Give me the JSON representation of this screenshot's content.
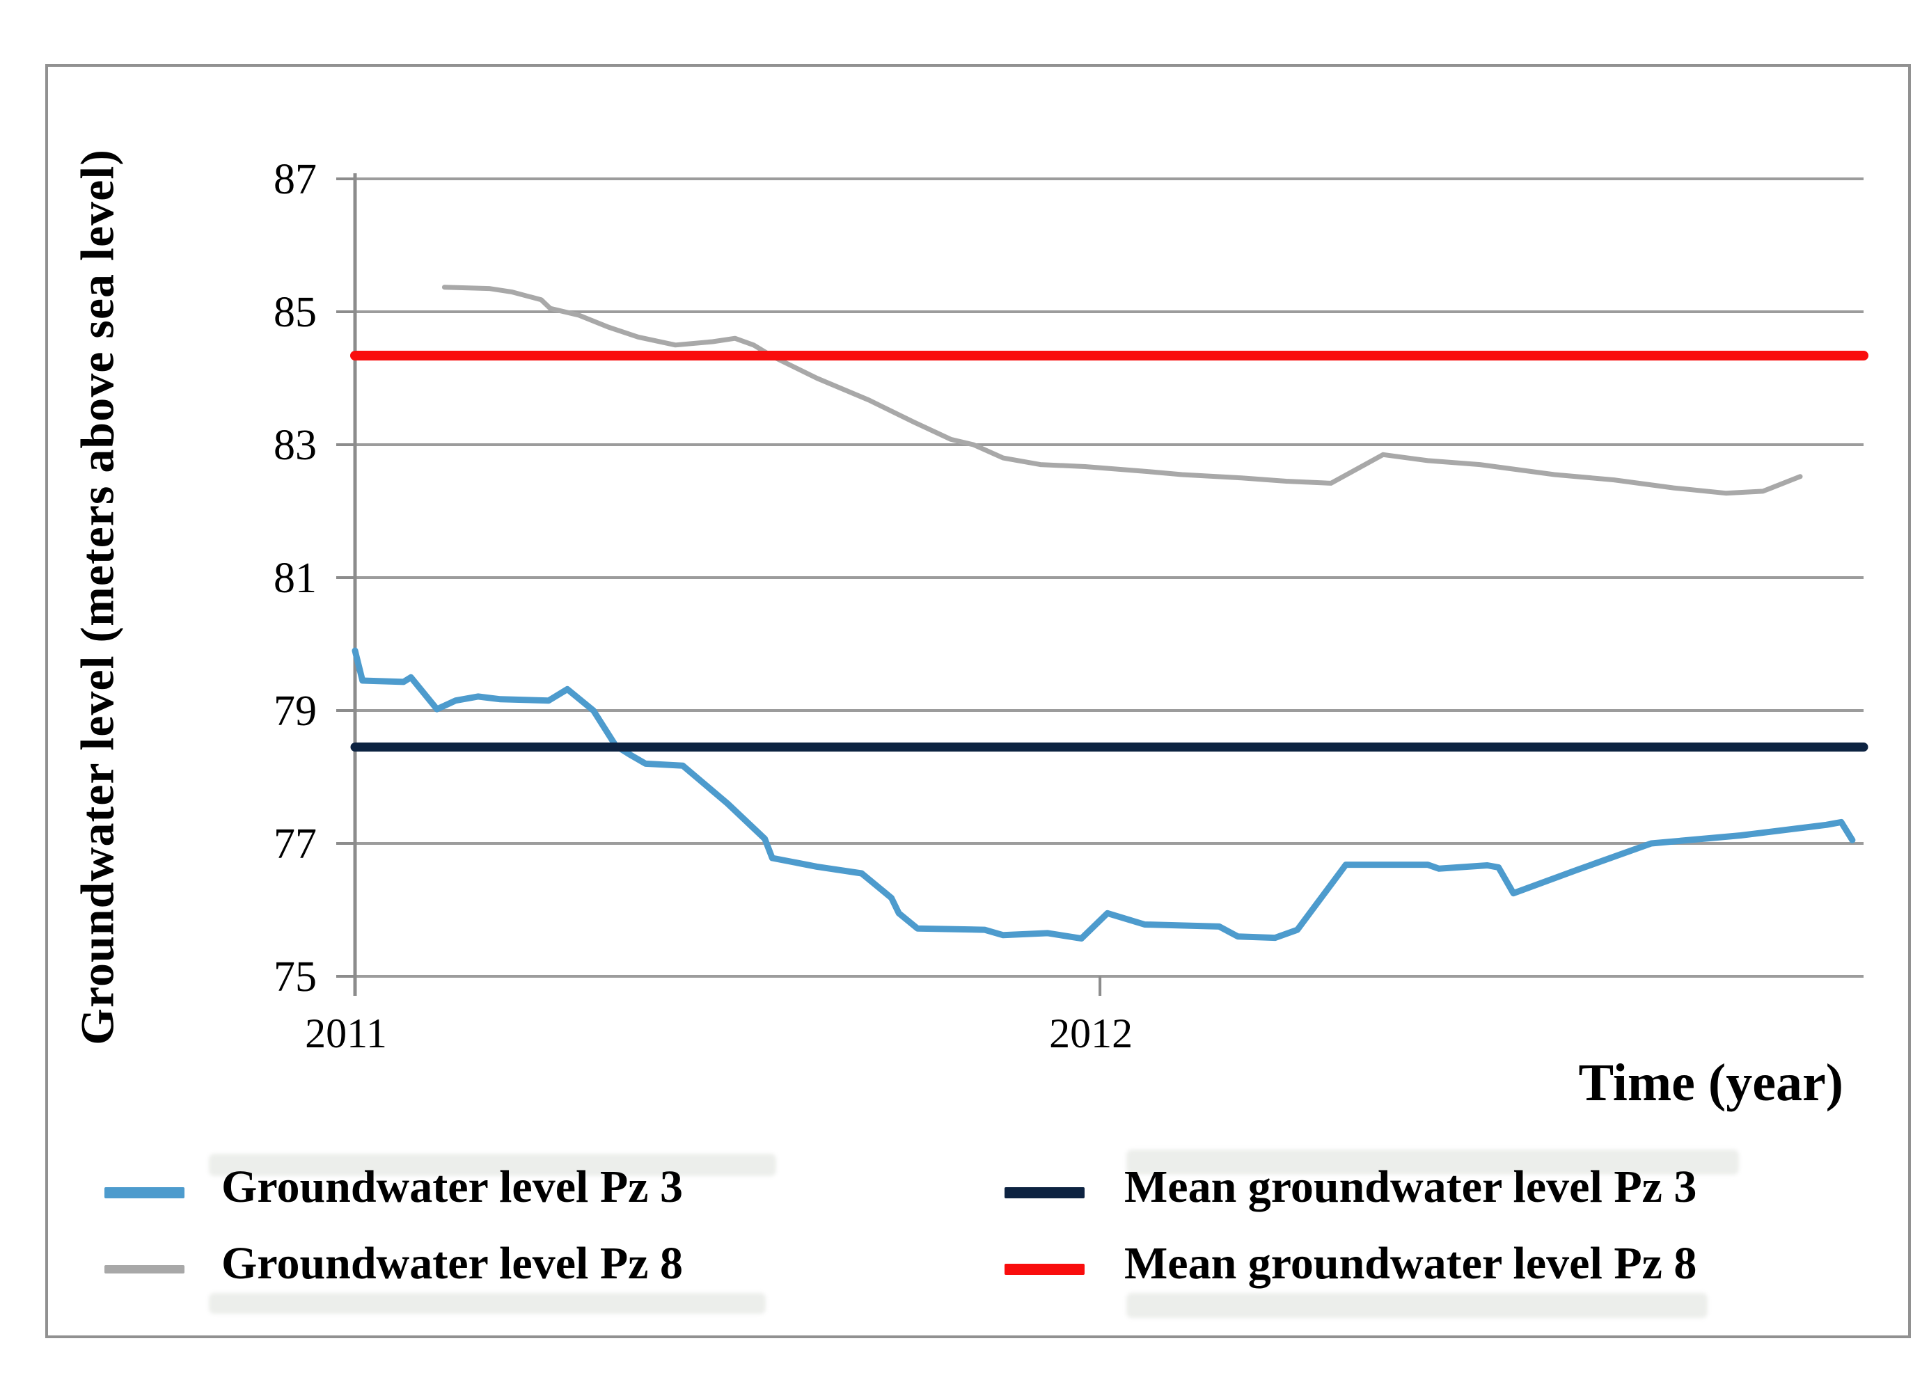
{
  "figure": {
    "y_axis_title": "Groundwater level (meters above sea level)",
    "x_axis_title": "Time (year)"
  },
  "legend": {
    "items": [
      {
        "id": "pz3",
        "label": "Groundwater level Pz 3",
        "color": "#4D9BCD",
        "swatch_height": 16
      },
      {
        "id": "pz8",
        "label": "Groundwater level Pz 8",
        "color": "#A8A8A8",
        "swatch_height": 12
      },
      {
        "id": "mean-pz3",
        "label": "Mean groundwater level Pz 3",
        "color": "#0D2341",
        "swatch_height": 16
      },
      {
        "id": "mean-pz8",
        "label": "Mean groundwater level Pz 8",
        "color": "#F90D0D",
        "swatch_height": 16
      }
    ]
  },
  "chart_data": {
    "type": "line",
    "title": "",
    "xlabel": "Time (year)",
    "ylabel": "Groundwater level (meters above sea level)",
    "ylim": [
      75,
      87
    ],
    "xlim": [
      2011,
      2013.025
    ],
    "grid": true,
    "grid_color": "#9C9C9C",
    "axis_color": "#8C8C8C",
    "legend_position": "bottom",
    "y_ticks": [
      75,
      77,
      79,
      81,
      83,
      85,
      87
    ],
    "x_ticks": [
      {
        "label": "2011",
        "year": 2011
      },
      {
        "label": "2012",
        "year": 2012
      }
    ],
    "series": [
      {
        "id": "pz8",
        "name": "Groundwater level Pz 8",
        "color": "#A8A8A8",
        "width": 7,
        "points": [
          [
            2011.12,
            85.37
          ],
          [
            2011.18,
            85.35
          ],
          [
            2011.21,
            85.3
          ],
          [
            2011.25,
            85.18
          ],
          [
            2011.262,
            85.05
          ],
          [
            2011.3,
            84.95
          ],
          [
            2011.34,
            84.77
          ],
          [
            2011.38,
            84.62
          ],
          [
            2011.43,
            84.5
          ],
          [
            2011.48,
            84.55
          ],
          [
            2011.51,
            84.6
          ],
          [
            2011.535,
            84.5
          ],
          [
            2011.56,
            84.33
          ],
          [
            2011.62,
            84.0
          ],
          [
            2011.69,
            83.67
          ],
          [
            2011.75,
            83.34
          ],
          [
            2011.8,
            83.08
          ],
          [
            2011.83,
            83.0
          ],
          [
            2011.87,
            82.8
          ],
          [
            2011.92,
            82.7
          ],
          [
            2011.98,
            82.67
          ],
          [
            2012.06,
            82.6
          ],
          [
            2012.11,
            82.55
          ],
          [
            2012.19,
            82.5
          ],
          [
            2012.25,
            82.45
          ],
          [
            2012.31,
            82.42
          ],
          [
            2012.38,
            82.85
          ],
          [
            2012.44,
            82.76
          ],
          [
            2012.51,
            82.7
          ],
          [
            2012.61,
            82.55
          ],
          [
            2012.69,
            82.47
          ],
          [
            2012.77,
            82.35
          ],
          [
            2012.84,
            82.27
          ],
          [
            2012.89,
            82.3
          ],
          [
            2012.94,
            82.52
          ]
        ]
      },
      {
        "id": "pz3",
        "name": "Groundwater level Pz 3",
        "color": "#4D9BCD",
        "width": 9,
        "points": [
          [
            2011.0,
            79.9
          ],
          [
            2011.01,
            79.45
          ],
          [
            2011.065,
            79.43
          ],
          [
            2011.075,
            79.5
          ],
          [
            2011.11,
            79.02
          ],
          [
            2011.135,
            79.15
          ],
          [
            2011.165,
            79.21
          ],
          [
            2011.195,
            79.17
          ],
          [
            2011.26,
            79.15
          ],
          [
            2011.285,
            79.32
          ],
          [
            2011.32,
            79.0
          ],
          [
            2011.35,
            78.47
          ],
          [
            2011.37,
            78.33
          ],
          [
            2011.39,
            78.2
          ],
          [
            2011.44,
            78.17
          ],
          [
            2011.5,
            77.6
          ],
          [
            2011.55,
            77.07
          ],
          [
            2011.56,
            76.78
          ],
          [
            2011.62,
            76.65
          ],
          [
            2011.68,
            76.55
          ],
          [
            2011.72,
            76.18
          ],
          [
            2011.73,
            75.95
          ],
          [
            2011.755,
            75.72
          ],
          [
            2011.845,
            75.7
          ],
          [
            2011.87,
            75.62
          ],
          [
            2011.93,
            75.65
          ],
          [
            2011.975,
            75.57
          ],
          [
            2012.01,
            75.95
          ],
          [
            2012.06,
            75.78
          ],
          [
            2012.16,
            75.75
          ],
          [
            2012.185,
            75.6
          ],
          [
            2012.235,
            75.58
          ],
          [
            2012.265,
            75.7
          ],
          [
            2012.33,
            76.68
          ],
          [
            2012.44,
            76.68
          ],
          [
            2012.455,
            76.62
          ],
          [
            2012.52,
            76.67
          ],
          [
            2012.535,
            76.64
          ],
          [
            2012.555,
            76.25
          ],
          [
            2012.64,
            76.6
          ],
          [
            2012.74,
            77.0
          ],
          [
            2012.86,
            77.12
          ],
          [
            2012.975,
            77.28
          ],
          [
            2012.995,
            77.32
          ],
          [
            2013.01,
            77.05
          ]
        ]
      },
      {
        "id": "mean-pz3",
        "name": "Mean groundwater level Pz 3",
        "color": "#0D2341",
        "width": 13,
        "points": [
          [
            2011.0,
            78.45
          ],
          [
            2013.025,
            78.45
          ]
        ]
      },
      {
        "id": "mean-pz8",
        "name": "Mean groundwater level Pz 8",
        "color": "#F90D0D",
        "width": 14,
        "points": [
          [
            2011.0,
            84.34
          ],
          [
            2013.025,
            84.34
          ]
        ]
      }
    ]
  }
}
